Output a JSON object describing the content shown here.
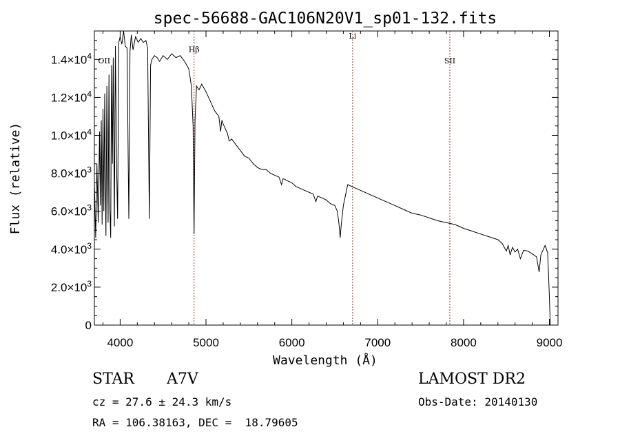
{
  "chart_data": {
    "type": "line",
    "title": "spec-56688-GAC106N20V1_sp01-132.fits",
    "xlabel": "Wavelength (Å)",
    "ylabel": "Flux (relative)",
    "xlim": [
      3700,
      9100
    ],
    "ylim": [
      0,
      15500
    ],
    "x_ticks": [
      4000,
      5000,
      6000,
      7000,
      8000,
      9000
    ],
    "x_tick_labels": [
      "4000",
      "5000",
      "6000",
      "7000",
      "8000",
      "9000"
    ],
    "y_ticks": [
      0,
      2000,
      4000,
      6000,
      8000,
      10000,
      12000,
      14000
    ],
    "y_tick_labels": [
      {
        "mantissa": "0",
        "exp": ""
      },
      {
        "mantissa": "2.0×10",
        "exp": "3"
      },
      {
        "mantissa": "4.0×10",
        "exp": "3"
      },
      {
        "mantissa": "6.0×10",
        "exp": "3"
      },
      {
        "mantissa": "8.0×10",
        "exp": "3"
      },
      {
        "mantissa": "1.0×10",
        "exp": "4"
      },
      {
        "mantissa": "1.2×10",
        "exp": "4"
      },
      {
        "mantissa": "1.4×10",
        "exp": "4"
      }
    ],
    "grid": false,
    "lines": [
      {
        "label": "Hβ",
        "wavelength": 4861,
        "label_flux": 14400
      },
      {
        "label": "Li",
        "wavelength": 6708,
        "label_flux": 15100
      },
      {
        "label": "SII",
        "wavelength": 7840,
        "label_flux": 13800
      },
      {
        "label": "OII",
        "wavelength": 3727,
        "label_flux": 13800
      }
    ],
    "series": [
      {
        "x": [
          3700,
          3715,
          3730,
          3745,
          3760,
          3770,
          3780,
          3790,
          3800,
          3810,
          3820,
          3830,
          3835,
          3845,
          3860,
          3870,
          3880,
          3890,
          3900,
          3910,
          3920,
          3933,
          3945,
          3960,
          3970,
          3985,
          4000,
          4020,
          4040,
          4060,
          4080,
          4101,
          4115,
          4130,
          4150,
          4180,
          4210,
          4240,
          4270,
          4300,
          4320,
          4340,
          4355,
          4370,
          4400,
          4430,
          4460,
          4500,
          4550,
          4600,
          4650,
          4700,
          4750,
          4800,
          4830,
          4850,
          4861,
          4872,
          4890,
          4920,
          4950,
          5000,
          5050,
          5100,
          5150,
          5170,
          5185,
          5200,
          5250,
          5270,
          5300,
          5350,
          5400,
          5450,
          5500,
          5550,
          5600,
          5650,
          5700,
          5750,
          5800,
          5850,
          5880,
          5895,
          5910,
          5950,
          6000,
          6050,
          6100,
          6150,
          6200,
          6250,
          6280,
          6300,
          6350,
          6400,
          6450,
          6500,
          6530,
          6550,
          6563,
          6576,
          6600,
          6650,
          6700,
          6750,
          6800,
          6850,
          6900,
          6950,
          7000,
          7100,
          7200,
          7300,
          7400,
          7500,
          7600,
          7700,
          7800,
          7850,
          7900,
          8000,
          8100,
          8200,
          8300,
          8400,
          8450,
          8498,
          8520,
          8542,
          8570,
          8600,
          8630,
          8662,
          8700,
          8750,
          8800,
          8850,
          8880,
          8900,
          8950,
          8980,
          9000,
          9010
        ],
        "y": [
          7500,
          4600,
          8500,
          5400,
          10200,
          6300,
          10800,
          5300,
          11400,
          6000,
          12200,
          6500,
          4700,
          12600,
          5400,
          13200,
          6200,
          4600,
          13700,
          8500,
          14100,
          5200,
          14700,
          8000,
          5600,
          14900,
          15200,
          14800,
          15500,
          14700,
          14600,
          5600,
          14400,
          15300,
          14500,
          15200,
          14900,
          15100,
          14900,
          15000,
          14600,
          5600,
          13700,
          14000,
          14200,
          14100,
          13900,
          14200,
          14000,
          14300,
          14100,
          14200,
          13900,
          13500,
          12600,
          10500,
          4800,
          10800,
          12600,
          12400,
          12700,
          12300,
          11800,
          11300,
          11000,
          10200,
          10800,
          10600,
          10100,
          9700,
          9800,
          9500,
          9200,
          8900,
          8800,
          8500,
          8300,
          8200,
          8200,
          8000,
          7900,
          7800,
          7400,
          7700,
          7700,
          7600,
          7500,
          7300,
          7200,
          7100,
          7000,
          6900,
          6500,
          6800,
          6700,
          6600,
          6400,
          6300,
          6000,
          5300,
          4600,
          5300,
          6300,
          7400,
          7300,
          7200,
          7100,
          7000,
          6900,
          6800,
          6700,
          6500,
          6300,
          6100,
          5900,
          5800,
          5650,
          5500,
          5400,
          5350,
          5300,
          5100,
          4950,
          4800,
          4650,
          4500,
          4300,
          3900,
          4200,
          3700,
          4100,
          3850,
          4000,
          3500,
          3950,
          3900,
          3750,
          3600,
          2800,
          3700,
          4200,
          3800,
          1500,
          0
        ]
      }
    ]
  },
  "info": {
    "object_type": "STAR",
    "subclass": "A7V",
    "survey": "LAMOST DR2",
    "cz": "cz = 27.6 ± 24.3 km/s",
    "obs_date": "Obs-Date: 20140130",
    "coords": "RA = 106.38163, DEC =  18.79605"
  }
}
